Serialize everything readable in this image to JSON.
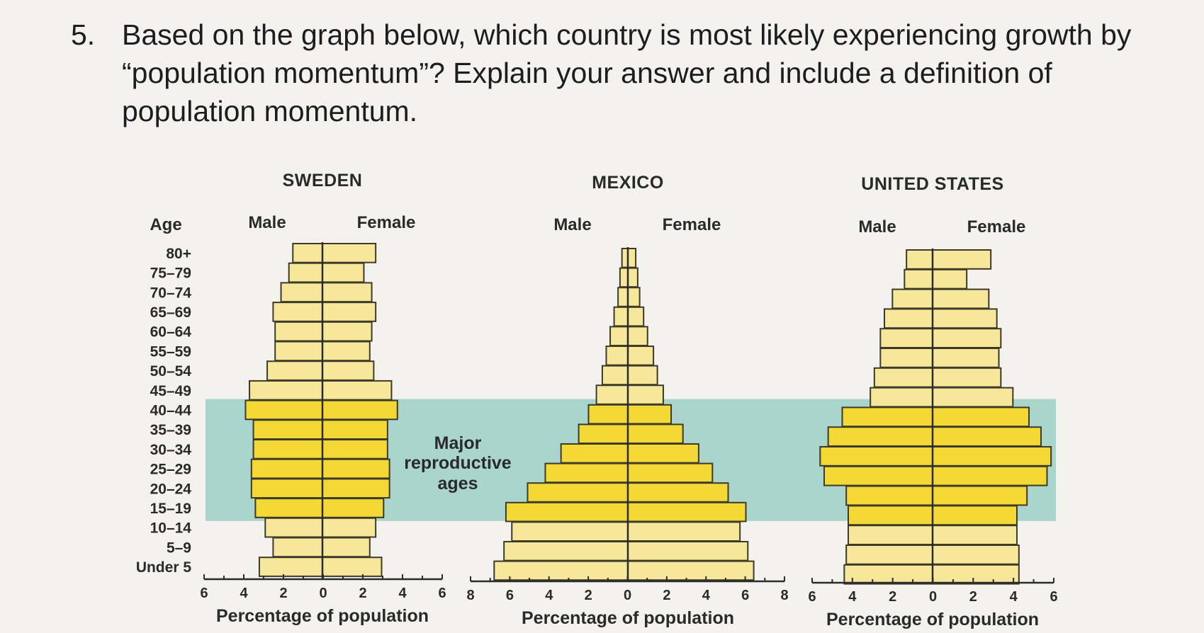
{
  "question": {
    "number": "5.",
    "text": "Based on the graph below, which country is most likely experiencing growth by “population momentum”? Explain your answer and include a definition of population momentum."
  },
  "colors": {
    "bar_light": "#f6e79a",
    "bar_dark": "#f4d836",
    "band": "#a9d5cc",
    "background": "#f3f2ef"
  },
  "chart_data": [
    {
      "type": "bar",
      "title": "SWEDEN",
      "male_label": "Male",
      "female_label": "Female",
      "age_axis_label": "Age",
      "xlabel": "Percentage of population",
      "xlim": [
        -6,
        6
      ],
      "x_ticks": [
        "6",
        "4",
        "2",
        "0",
        "2",
        "4",
        "6"
      ],
      "categories": [
        "80+",
        "75–79",
        "70–74",
        "65–69",
        "60–64",
        "55–59",
        "50–54",
        "45–49",
        "40–44",
        "35–39",
        "30–34",
        "25–29",
        "20–24",
        "15–19",
        "10–14",
        "5–9",
        "Under 5"
      ],
      "series": [
        {
          "name": "Male",
          "values": [
            1.5,
            1.7,
            2.1,
            2.5,
            2.4,
            2.4,
            2.8,
            3.7,
            3.9,
            3.5,
            3.5,
            3.6,
            3.6,
            3.4,
            2.9,
            2.5,
            3.2
          ]
        },
        {
          "name": "Female",
          "values": [
            2.7,
            2.1,
            2.5,
            2.7,
            2.5,
            2.4,
            2.6,
            3.5,
            3.8,
            3.3,
            3.3,
            3.4,
            3.4,
            3.1,
            2.7,
            2.4,
            3.0
          ]
        }
      ],
      "reproductive_rows": [
        8,
        13
      ]
    },
    {
      "type": "bar",
      "title": "MEXICO",
      "male_label": "Male",
      "female_label": "Female",
      "xlabel": "Percentage of population",
      "xlim": [
        -8,
        8
      ],
      "x_ticks": [
        "8",
        "6",
        "4",
        "2",
        "0",
        "2",
        "4",
        "6",
        "8"
      ],
      "categories": [
        "80+",
        "75–79",
        "70–74",
        "65–69",
        "60–64",
        "55–59",
        "50–54",
        "45–49",
        "40–44",
        "35–39",
        "30–34",
        "25–29",
        "20–24",
        "15–19",
        "10–14",
        "5–9",
        "Under 5"
      ],
      "series": [
        {
          "name": "Male",
          "values": [
            0.3,
            0.4,
            0.5,
            0.7,
            0.9,
            1.1,
            1.3,
            1.6,
            2.0,
            2.5,
            3.4,
            4.2,
            5.1,
            6.2,
            5.9,
            6.3,
            6.8
          ]
        },
        {
          "name": "Female",
          "values": [
            0.4,
            0.5,
            0.6,
            0.8,
            1.0,
            1.3,
            1.5,
            1.8,
            2.2,
            2.8,
            3.6,
            4.3,
            5.1,
            6.0,
            5.7,
            6.1,
            6.4
          ]
        }
      ],
      "reproductive_rows": [
        8,
        13
      ]
    },
    {
      "type": "bar",
      "title": "UNITED STATES",
      "male_label": "Male",
      "female_label": "Female",
      "xlabel": "Percentage of population",
      "xlim": [
        -6,
        6
      ],
      "x_ticks": [
        "6",
        "4",
        "2",
        "0",
        "2",
        "4",
        "6"
      ],
      "categories": [
        "80+",
        "75–79",
        "70–74",
        "65–69",
        "60–64",
        "55–59",
        "50–54",
        "45–49",
        "40–44",
        "35–39",
        "30–34",
        "25–29",
        "20–24",
        "15–19",
        "10–14",
        "5–9",
        "Under 5"
      ],
      "series": [
        {
          "name": "Male",
          "values": [
            1.3,
            1.4,
            2.0,
            2.4,
            2.6,
            2.6,
            2.9,
            3.1,
            4.5,
            5.2,
            5.6,
            5.4,
            4.3,
            4.2,
            4.2,
            4.3,
            4.4
          ]
        },
        {
          "name": "Female",
          "values": [
            2.9,
            1.7,
            2.8,
            3.2,
            3.4,
            3.3,
            3.4,
            4.0,
            4.8,
            5.4,
            5.9,
            5.7,
            4.7,
            4.2,
            4.2,
            4.3,
            4.3
          ]
        }
      ],
      "reproductive_rows": [
        8,
        13
      ]
    }
  ],
  "annotation": {
    "lines": [
      "Major",
      "reproductive",
      "ages"
    ]
  }
}
